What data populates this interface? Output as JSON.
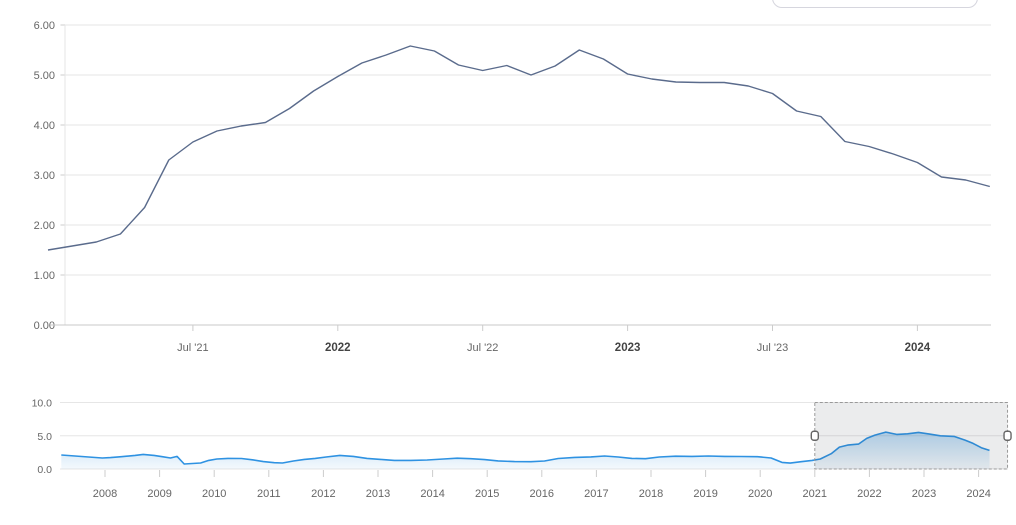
{
  "colors": {
    "main_line": "#5a6b8c",
    "grid_line": "#e6e6e6",
    "axis_line": "#c8c8c8",
    "tick": "#cccccc",
    "label": "#666666",
    "label_bold": "#444444",
    "nav_line": "#2e92e2",
    "nav_fill_top": "rgba(44,142,220,0.55)",
    "nav_fill_bottom": "rgba(44,142,220,0.05)",
    "selection_fill": "rgba(60,70,80,0.10)",
    "selection_border": "#999999",
    "handle_fill": "#ffffff",
    "handle_border": "#666666"
  },
  "chart_data": [
    {
      "type": "line",
      "role": "main-chart",
      "title": "",
      "xlabel": "",
      "ylabel": "",
      "ylim": [
        0,
        6
      ],
      "grid": "horizontal",
      "y_tick_labels": [
        "6.00",
        "5.00",
        "4.00",
        "3.00",
        "2.00",
        "1.00",
        "0.00"
      ],
      "y_tick_values": [
        6,
        5,
        4,
        3,
        2,
        1,
        0
      ],
      "x_tick_labels": [
        {
          "label": "Jul '21",
          "bold": false,
          "month_index": 6
        },
        {
          "label": "2022",
          "bold": true,
          "month_index": 12
        },
        {
          "label": "Jul '22",
          "bold": false,
          "month_index": 18
        },
        {
          "label": "2023",
          "bold": true,
          "month_index": 24
        },
        {
          "label": "Jul '23",
          "bold": false,
          "month_index": 30
        },
        {
          "label": "2024",
          "bold": true,
          "month_index": 36
        }
      ],
      "series": [
        {
          "name": "value",
          "start_month": "2021-01",
          "interval": "monthly",
          "values": [
            1.5,
            1.58,
            1.66,
            1.82,
            2.35,
            3.3,
            3.66,
            3.88,
            3.98,
            4.05,
            4.33,
            4.68,
            4.97,
            5.24,
            5.4,
            5.58,
            5.48,
            5.2,
            5.09,
            5.19,
            5.0,
            5.18,
            5.5,
            5.32,
            5.02,
            4.92,
            4.86,
            4.85,
            4.85,
            4.78,
            4.63,
            4.28,
            4.17,
            3.67,
            3.57,
            3.42,
            3.25,
            2.96,
            2.9,
            2.77
          ]
        }
      ]
    },
    {
      "type": "area",
      "role": "navigator",
      "title": "",
      "ylim": [
        0,
        10
      ],
      "y_tick_labels": [
        "10.0",
        "5.0",
        "0.0"
      ],
      "y_tick_values": [
        10,
        5,
        0
      ],
      "x_tick_labels": [
        "2008",
        "2009",
        "2010",
        "2011",
        "2012",
        "2013",
        "2014",
        "2015",
        "2016",
        "2017",
        "2018",
        "2019",
        "2020",
        "2021",
        "2022",
        "2023",
        "2024"
      ],
      "points": [
        [
          2007.2,
          2.1
        ],
        [
          2007.45,
          1.95
        ],
        [
          2007.7,
          1.8
        ],
        [
          2007.95,
          1.65
        ],
        [
          2008.1,
          1.72
        ],
        [
          2008.3,
          1.85
        ],
        [
          2008.55,
          2.05
        ],
        [
          2008.7,
          2.2
        ],
        [
          2008.9,
          2.05
        ],
        [
          2009.05,
          1.85
        ],
        [
          2009.2,
          1.65
        ],
        [
          2009.32,
          1.9
        ],
        [
          2009.45,
          0.75
        ],
        [
          2009.6,
          0.82
        ],
        [
          2009.75,
          0.9
        ],
        [
          2009.9,
          1.3
        ],
        [
          2010.05,
          1.5
        ],
        [
          2010.25,
          1.6
        ],
        [
          2010.5,
          1.58
        ],
        [
          2010.7,
          1.38
        ],
        [
          2010.9,
          1.12
        ],
        [
          2011.1,
          0.95
        ],
        [
          2011.25,
          0.9
        ],
        [
          2011.45,
          1.2
        ],
        [
          2011.65,
          1.45
        ],
        [
          2011.85,
          1.6
        ],
        [
          2012.05,
          1.8
        ],
        [
          2012.3,
          2.05
        ],
        [
          2012.55,
          1.9
        ],
        [
          2012.8,
          1.6
        ],
        [
          2013.05,
          1.45
        ],
        [
          2013.3,
          1.3
        ],
        [
          2013.6,
          1.3
        ],
        [
          2013.9,
          1.35
        ],
        [
          2014.2,
          1.5
        ],
        [
          2014.45,
          1.62
        ],
        [
          2014.7,
          1.55
        ],
        [
          2014.95,
          1.42
        ],
        [
          2015.2,
          1.22
        ],
        [
          2015.5,
          1.12
        ],
        [
          2015.8,
          1.1
        ],
        [
          2016.05,
          1.2
        ],
        [
          2016.3,
          1.58
        ],
        [
          2016.6,
          1.75
        ],
        [
          2016.9,
          1.82
        ],
        [
          2017.15,
          1.95
        ],
        [
          2017.4,
          1.8
        ],
        [
          2017.65,
          1.6
        ],
        [
          2017.9,
          1.55
        ],
        [
          2018.15,
          1.8
        ],
        [
          2018.45,
          1.92
        ],
        [
          2018.75,
          1.9
        ],
        [
          2019.05,
          1.95
        ],
        [
          2019.35,
          1.9
        ],
        [
          2019.65,
          1.88
        ],
        [
          2019.95,
          1.85
        ],
        [
          2020.2,
          1.65
        ],
        [
          2020.4,
          1.0
        ],
        [
          2020.55,
          0.88
        ],
        [
          2020.75,
          1.1
        ],
        [
          2020.95,
          1.3
        ],
        [
          2021.1,
          1.5
        ],
        [
          2021.3,
          2.3
        ],
        [
          2021.45,
          3.3
        ],
        [
          2021.6,
          3.6
        ],
        [
          2021.8,
          3.75
        ],
        [
          2021.95,
          4.6
        ],
        [
          2022.1,
          5.1
        ],
        [
          2022.3,
          5.55
        ],
        [
          2022.5,
          5.2
        ],
        [
          2022.7,
          5.3
        ],
        [
          2022.9,
          5.5
        ],
        [
          2023.1,
          5.25
        ],
        [
          2023.3,
          5.0
        ],
        [
          2023.55,
          4.9
        ],
        [
          2023.75,
          4.35
        ],
        [
          2023.9,
          3.85
        ],
        [
          2024.05,
          3.2
        ],
        [
          2024.2,
          2.8
        ]
      ],
      "selection": {
        "start_year": 2021.0,
        "end_year": 2024.53
      },
      "legend": "none"
    }
  ]
}
